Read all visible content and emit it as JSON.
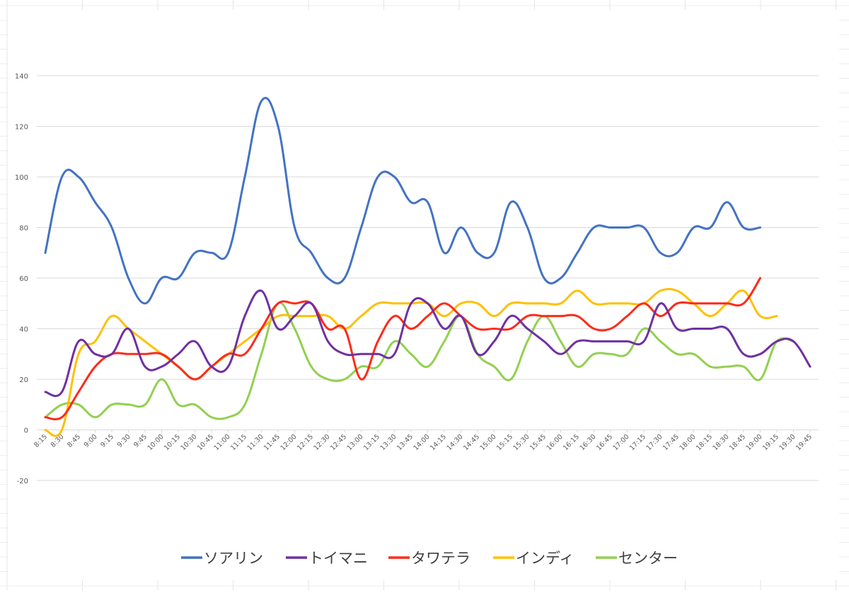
{
  "chart_data": {
    "type": "line",
    "title": "",
    "xlabel": "",
    "ylabel": "",
    "ylim": [
      -20,
      140
    ],
    "yticks": [
      -20,
      0,
      20,
      40,
      60,
      80,
      100,
      120,
      140
    ],
    "grid": true,
    "legend_position": "bottom",
    "categories": [
      "8:15",
      "8:30",
      "8:45",
      "9:00",
      "9:15",
      "9:30",
      "9:45",
      "10:00",
      "10:15",
      "10:30",
      "10:45",
      "11:00",
      "11:15",
      "11:30",
      "11:45",
      "12:00",
      "12:15",
      "12:30",
      "12:45",
      "13:00",
      "13:15",
      "13:30",
      "13:45",
      "14:00",
      "14:15",
      "14:30",
      "14:45",
      "15:00",
      "15:15",
      "15:30",
      "15:45",
      "16:00",
      "16:15",
      "16:30",
      "16:45",
      "17:00",
      "17:15",
      "17:30",
      "17:45",
      "18:00",
      "18:15",
      "18:30",
      "18:45",
      "19:00",
      "19:15",
      "19:30",
      "19:45"
    ],
    "series": [
      {
        "name": "ソアリン",
        "color": "#4472C4",
        "values": [
          70,
          100,
          100,
          90,
          80,
          60,
          50,
          60,
          60,
          70,
          70,
          70,
          100,
          130,
          120,
          80,
          70,
          60,
          60,
          80,
          100,
          100,
          90,
          90,
          70,
          80,
          70,
          70,
          90,
          80,
          60,
          60,
          70,
          80,
          80,
          80,
          80,
          70,
          70,
          80,
          80,
          90,
          80,
          80,
          null,
          null,
          null
        ]
      },
      {
        "name": "トイマニ",
        "color": "#7030A0",
        "values": [
          15,
          15,
          35,
          30,
          30,
          40,
          25,
          25,
          30,
          35,
          25,
          25,
          45,
          55,
          40,
          45,
          50,
          35,
          30,
          30,
          30,
          30,
          50,
          50,
          40,
          45,
          30,
          35,
          45,
          40,
          35,
          30,
          35,
          35,
          35,
          35,
          35,
          50,
          40,
          40,
          40,
          40,
          30,
          30,
          35,
          35,
          25
        ]
      },
      {
        "name": "タワテラ",
        "color": "#FF2A1A",
        "values": [
          5,
          5,
          15,
          25,
          30,
          30,
          30,
          30,
          25,
          20,
          25,
          30,
          30,
          40,
          50,
          50,
          50,
          40,
          40,
          20,
          35,
          45,
          40,
          45,
          50,
          45,
          40,
          40,
          40,
          45,
          45,
          45,
          45,
          40,
          40,
          45,
          50,
          45,
          50,
          50,
          50,
          50,
          50,
          60,
          null,
          null,
          null
        ]
      },
      {
        "name": "インディ",
        "color": "#FFC000",
        "values": [
          0,
          0,
          30,
          35,
          45,
          40,
          35,
          30,
          25,
          20,
          25,
          30,
          35,
          40,
          45,
          45,
          45,
          45,
          40,
          45,
          50,
          50,
          50,
          50,
          45,
          50,
          50,
          45,
          50,
          50,
          50,
          50,
          55,
          50,
          50,
          50,
          50,
          55,
          55,
          50,
          45,
          50,
          55,
          45,
          45,
          null,
          null
        ]
      },
      {
        "name": "センター",
        "color": "#92D050",
        "values": [
          5,
          10,
          10,
          5,
          10,
          10,
          10,
          20,
          10,
          10,
          5,
          5,
          10,
          30,
          50,
          40,
          25,
          20,
          20,
          25,
          25,
          35,
          30,
          25,
          35,
          45,
          30,
          25,
          20,
          35,
          45,
          35,
          25,
          30,
          30,
          30,
          40,
          35,
          30,
          30,
          25,
          25,
          25,
          20,
          35,
          35,
          null
        ]
      }
    ]
  }
}
